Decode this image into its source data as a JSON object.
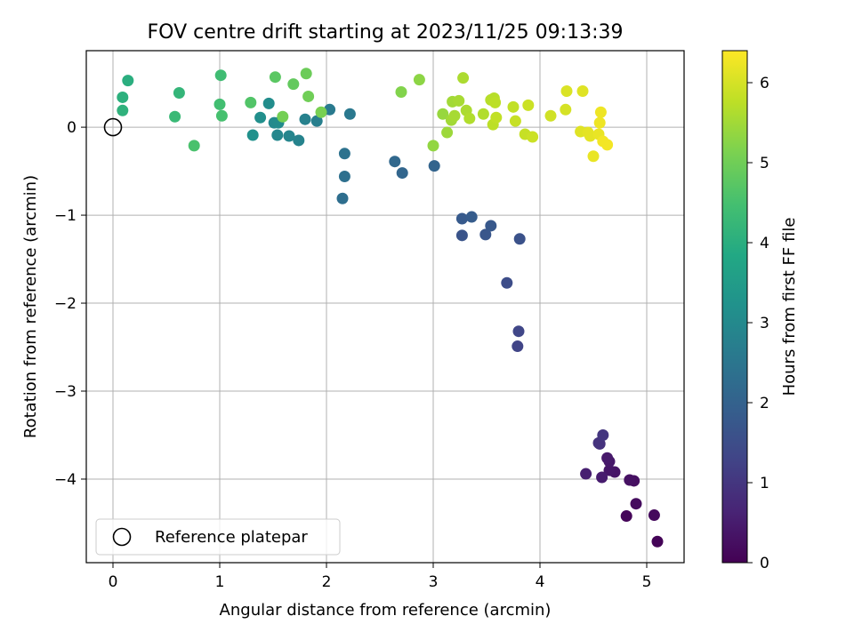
{
  "chart_data": {
    "type": "scatter",
    "title": "FOV centre drift starting at 2023/11/25 09:13:39",
    "xlabel": "Angular distance from reference (arcmin)",
    "ylabel": "Rotation from reference (arcmin)",
    "xlim": [
      -0.25,
      5.35
    ],
    "ylim": [
      -4.95,
      0.87
    ],
    "xticks": [
      0,
      1,
      2,
      3,
      4,
      5
    ],
    "yticks": [
      0,
      -1,
      -2,
      -3,
      -4
    ],
    "xtick_labels": [
      "0",
      "1",
      "2",
      "3",
      "4",
      "5"
    ],
    "ytick_labels": [
      "0",
      "−1",
      "−2",
      "−3",
      "−4"
    ],
    "grid": true,
    "colormap": "viridis",
    "colorbar": {
      "label": "Hours from first FF file",
      "range": [
        0,
        6.4
      ],
      "ticks": [
        0,
        1,
        2,
        3,
        4,
        5,
        6
      ],
      "tick_labels": [
        "0",
        "1",
        "2",
        "3",
        "4",
        "5",
        "6"
      ]
    },
    "legend": {
      "location": "lower-left",
      "entries": [
        {
          "label": "Reference platepar",
          "marker": "open-circle"
        }
      ]
    },
    "reference_point": {
      "x": 0,
      "y": 0
    },
    "points": [
      {
        "x": 5.1,
        "y": -4.71,
        "t": 0.05
      },
      {
        "x": 4.81,
        "y": -4.42,
        "t": 0.1
      },
      {
        "x": 5.07,
        "y": -4.41,
        "t": 0.15
      },
      {
        "x": 4.9,
        "y": -4.28,
        "t": 0.2
      },
      {
        "x": 4.88,
        "y": -4.02,
        "t": 0.25
      },
      {
        "x": 4.84,
        "y": -4.01,
        "t": 0.3
      },
      {
        "x": 4.7,
        "y": -3.92,
        "t": 0.35
      },
      {
        "x": 4.65,
        "y": -3.9,
        "t": 0.38
      },
      {
        "x": 4.65,
        "y": -3.8,
        "t": 0.42
      },
      {
        "x": 4.63,
        "y": -3.76,
        "t": 0.45
      },
      {
        "x": 4.58,
        "y": -3.98,
        "t": 0.5
      },
      {
        "x": 4.43,
        "y": -3.94,
        "t": 0.55
      },
      {
        "x": 4.56,
        "y": -3.6,
        "t": 0.9
      },
      {
        "x": 4.55,
        "y": -3.59,
        "t": 0.95
      },
      {
        "x": 4.59,
        "y": -3.5,
        "t": 1.0
      },
      {
        "x": 3.79,
        "y": -2.49,
        "t": 1.3
      },
      {
        "x": 3.8,
        "y": -2.32,
        "t": 1.35
      },
      {
        "x": 3.69,
        "y": -1.77,
        "t": 1.5
      },
      {
        "x": 3.81,
        "y": -1.27,
        "t": 1.6
      },
      {
        "x": 3.27,
        "y": -1.23,
        "t": 1.65
      },
      {
        "x": 3.49,
        "y": -1.22,
        "t": 1.7
      },
      {
        "x": 3.54,
        "y": -1.12,
        "t": 1.75
      },
      {
        "x": 3.27,
        "y": -1.04,
        "t": 1.8
      },
      {
        "x": 3.36,
        "y": -1.02,
        "t": 1.85
      },
      {
        "x": 3.01,
        "y": -0.44,
        "t": 2.05
      },
      {
        "x": 2.71,
        "y": -0.52,
        "t": 2.1
      },
      {
        "x": 2.64,
        "y": -0.39,
        "t": 2.15
      },
      {
        "x": 2.15,
        "y": -0.81,
        "t": 2.3
      },
      {
        "x": 2.17,
        "y": -0.56,
        "t": 2.35
      },
      {
        "x": 2.17,
        "y": -0.3,
        "t": 2.4
      },
      {
        "x": 2.22,
        "y": 0.15,
        "t": 2.55
      },
      {
        "x": 2.03,
        "y": 0.2,
        "t": 2.6
      },
      {
        "x": 1.91,
        "y": 0.07,
        "t": 2.75
      },
      {
        "x": 1.8,
        "y": 0.09,
        "t": 2.8
      },
      {
        "x": 1.74,
        "y": -0.15,
        "t": 2.85
      },
      {
        "x": 1.65,
        "y": -0.1,
        "t": 2.9
      },
      {
        "x": 1.54,
        "y": -0.09,
        "t": 2.95
      },
      {
        "x": 1.51,
        "y": 0.05,
        "t": 3.0
      },
      {
        "x": 1.55,
        "y": 0.05,
        "t": 3.05
      },
      {
        "x": 1.46,
        "y": 0.27,
        "t": 3.1
      },
      {
        "x": 1.38,
        "y": 0.11,
        "t": 3.15
      },
      {
        "x": 1.31,
        "y": -0.09,
        "t": 3.2
      },
      {
        "x": 0.14,
        "y": 0.53,
        "t": 4.0
      },
      {
        "x": 0.09,
        "y": 0.34,
        "t": 4.05
      },
      {
        "x": 0.09,
        "y": 0.19,
        "t": 4.1
      },
      {
        "x": 0.62,
        "y": 0.39,
        "t": 4.2
      },
      {
        "x": 0.58,
        "y": 0.12,
        "t": 4.3
      },
      {
        "x": 1.01,
        "y": 0.59,
        "t": 4.4
      },
      {
        "x": 1.0,
        "y": 0.26,
        "t": 4.45
      },
      {
        "x": 1.02,
        "y": 0.13,
        "t": 4.5
      },
      {
        "x": 0.76,
        "y": -0.21,
        "t": 4.55
      },
      {
        "x": 1.29,
        "y": 0.28,
        "t": 4.65
      },
      {
        "x": 1.52,
        "y": 0.57,
        "t": 4.75
      },
      {
        "x": 1.69,
        "y": 0.49,
        "t": 4.85
      },
      {
        "x": 1.81,
        "y": 0.61,
        "t": 4.95
      },
      {
        "x": 1.83,
        "y": 0.35,
        "t": 5.0
      },
      {
        "x": 1.59,
        "y": 0.12,
        "t": 5.05
      },
      {
        "x": 1.95,
        "y": 0.17,
        "t": 5.1
      },
      {
        "x": 2.7,
        "y": 0.4,
        "t": 5.2
      },
      {
        "x": 2.87,
        "y": 0.54,
        "t": 5.3
      },
      {
        "x": 3.0,
        "y": -0.21,
        "t": 5.35
      },
      {
        "x": 3.09,
        "y": 0.15,
        "t": 5.4
      },
      {
        "x": 3.13,
        "y": -0.06,
        "t": 5.45
      },
      {
        "x": 3.17,
        "y": 0.08,
        "t": 5.5
      },
      {
        "x": 3.18,
        "y": 0.29,
        "t": 5.5
      },
      {
        "x": 3.2,
        "y": 0.13,
        "t": 5.55
      },
      {
        "x": 3.24,
        "y": 0.3,
        "t": 5.55
      },
      {
        "x": 3.28,
        "y": 0.56,
        "t": 5.6
      },
      {
        "x": 3.31,
        "y": 0.19,
        "t": 5.6
      },
      {
        "x": 3.34,
        "y": 0.1,
        "t": 5.65
      },
      {
        "x": 3.47,
        "y": 0.15,
        "t": 5.65
      },
      {
        "x": 3.54,
        "y": 0.31,
        "t": 5.7
      },
      {
        "x": 3.57,
        "y": 0.33,
        "t": 5.7
      },
      {
        "x": 3.56,
        "y": 0.03,
        "t": 5.75
      },
      {
        "x": 3.58,
        "y": 0.28,
        "t": 5.75
      },
      {
        "x": 3.59,
        "y": 0.11,
        "t": 5.8
      },
      {
        "x": 3.75,
        "y": 0.23,
        "t": 5.8
      },
      {
        "x": 3.77,
        "y": 0.07,
        "t": 5.85
      },
      {
        "x": 3.86,
        "y": -0.08,
        "t": 5.85
      },
      {
        "x": 3.89,
        "y": 0.25,
        "t": 5.9
      },
      {
        "x": 3.93,
        "y": -0.11,
        "t": 5.9
      },
      {
        "x": 4.1,
        "y": 0.13,
        "t": 5.95
      },
      {
        "x": 4.24,
        "y": 0.2,
        "t": 6.0
      },
      {
        "x": 4.25,
        "y": 0.41,
        "t": 6.05
      },
      {
        "x": 4.4,
        "y": 0.41,
        "t": 6.1
      },
      {
        "x": 4.38,
        "y": -0.05,
        "t": 6.1
      },
      {
        "x": 4.45,
        "y": -0.06,
        "t": 6.15
      },
      {
        "x": 4.47,
        "y": -0.1,
        "t": 6.15
      },
      {
        "x": 4.5,
        "y": -0.33,
        "t": 6.2
      },
      {
        "x": 4.55,
        "y": -0.08,
        "t": 6.2
      },
      {
        "x": 4.56,
        "y": 0.05,
        "t": 6.25
      },
      {
        "x": 4.57,
        "y": 0.17,
        "t": 6.25
      },
      {
        "x": 4.59,
        "y": -0.16,
        "t": 6.3
      },
      {
        "x": 4.63,
        "y": -0.2,
        "t": 6.3
      }
    ]
  }
}
